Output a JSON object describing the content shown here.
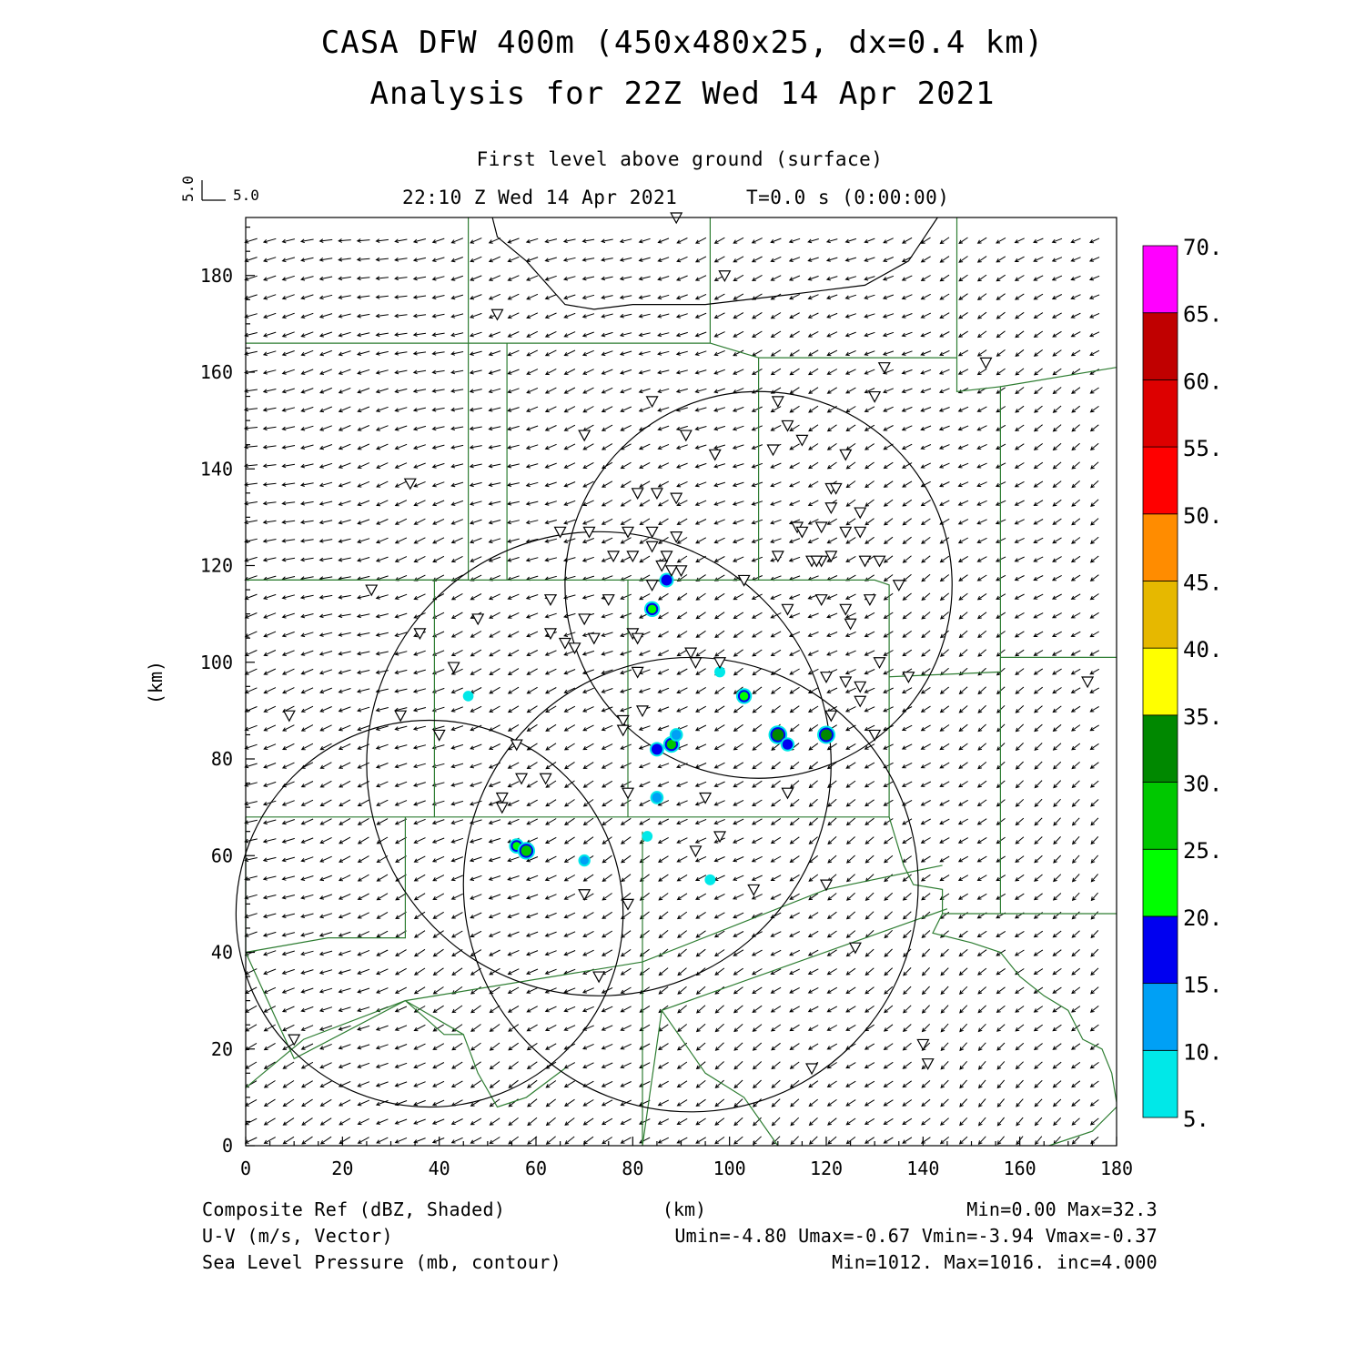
{
  "title_line1": "CASA DFW 400m (450x480x25, dx=0.4 km)",
  "title_line2": "Analysis for 22Z Wed 14 Apr 2021",
  "level_label": "First level above ground (surface)",
  "time_label": "22:10 Z Wed 14 Apr 2021",
  "t_label": "T=0.0 s (0:00:00)",
  "vector_ref_x": "5.0",
  "vector_ref_y": "5.0",
  "axis": {
    "ylabel": "(km)",
    "xlabel": "(km)",
    "x_ticks": [
      "0",
      "20",
      "40",
      "60",
      "80",
      "100",
      "120",
      "140",
      "160",
      "180"
    ],
    "y_ticks": [
      "0",
      "20",
      "40",
      "60",
      "80",
      "100",
      "120",
      "140",
      "160",
      "180"
    ]
  },
  "colorbar": {
    "labels": [
      "5.",
      "10.",
      "15.",
      "20.",
      "25.",
      "30.",
      "35.",
      "40.",
      "45.",
      "50.",
      "55.",
      "60.",
      "65.",
      "70."
    ],
    "colors": [
      "#00e8e8",
      "#00a0f5",
      "#0000f0",
      "#00ff00",
      "#00c800",
      "#008800",
      "#ffff00",
      "#e6b800",
      "#ff8c00",
      "#ff0000",
      "#dd0000",
      "#c00000",
      "#ff00ff"
    ]
  },
  "footer": {
    "line1_left": "Composite Ref (dBZ, Shaded)",
    "line1_right": "Min=0.00 Max=32.3",
    "line2_left": "U-V (m/s, Vector)",
    "line2_right": "Umin=-4.80 Umax=-0.67 Vmin=-3.94 Vmax=-0.37",
    "line3_left": "Sea Level Pressure (mb, contour)",
    "line3_right": "Min=1012. Max=1016. inc=4.000"
  },
  "map": {
    "radar_rings": [
      {
        "cx": 38,
        "cy": 48,
        "r": 40
      },
      {
        "cx": 73,
        "cy": 79,
        "r": 48
      },
      {
        "cx": 92,
        "cy": 54,
        "r": 47
      },
      {
        "cx": 106,
        "cy": 116,
        "r": 40
      }
    ],
    "echoes": [
      {
        "x": 56,
        "y": 62,
        "dbz": 20
      },
      {
        "x": 58,
        "y": 61,
        "dbz": 28
      },
      {
        "x": 70,
        "y": 59,
        "dbz": 10
      },
      {
        "x": 84,
        "y": 111,
        "dbz": 22
      },
      {
        "x": 87,
        "y": 117,
        "dbz": 18
      },
      {
        "x": 85,
        "y": 82,
        "dbz": 18
      },
      {
        "x": 88,
        "y": 83,
        "dbz": 25
      },
      {
        "x": 89,
        "y": 85,
        "dbz": 14
      },
      {
        "x": 85,
        "y": 72,
        "dbz": 14
      },
      {
        "x": 103,
        "y": 93,
        "dbz": 22
      },
      {
        "x": 110,
        "y": 85,
        "dbz": 32
      },
      {
        "x": 112,
        "y": 83,
        "dbz": 16
      },
      {
        "x": 120,
        "y": 85,
        "dbz": 30
      },
      {
        "x": 98,
        "y": 98,
        "dbz": 6
      },
      {
        "x": 96,
        "y": 55,
        "dbz": 6
      },
      {
        "x": 46,
        "y": 93,
        "dbz": 5
      },
      {
        "x": 83,
        "y": 64,
        "dbz": 5
      }
    ],
    "stations": [
      [
        89,
        192
      ],
      [
        99,
        180
      ],
      [
        52,
        172
      ],
      [
        153,
        162
      ],
      [
        132,
        161
      ],
      [
        84,
        154
      ],
      [
        110,
        154
      ],
      [
        130,
        155
      ],
      [
        70,
        147
      ],
      [
        91,
        147
      ],
      [
        112,
        149
      ],
      [
        115,
        146
      ],
      [
        97,
        143
      ],
      [
        109,
        144
      ],
      [
        124,
        143
      ],
      [
        34,
        137
      ],
      [
        81,
        135
      ],
      [
        85,
        135
      ],
      [
        89,
        134
      ],
      [
        121,
        136
      ],
      [
        122,
        136
      ],
      [
        121,
        132
      ],
      [
        127,
        131
      ],
      [
        114,
        128
      ],
      [
        115,
        127
      ],
      [
        119,
        128
      ],
      [
        65,
        127
      ],
      [
        71,
        127
      ],
      [
        79,
        127
      ],
      [
        84,
        127
      ],
      [
        89,
        126
      ],
      [
        124,
        127
      ],
      [
        127,
        127
      ],
      [
        76,
        122
      ],
      [
        80,
        122
      ],
      [
        84,
        124
      ],
      [
        87,
        122
      ],
      [
        117,
        121
      ],
      [
        119,
        121
      ],
      [
        118,
        121
      ],
      [
        121,
        122
      ],
      [
        110,
        122
      ],
      [
        128,
        121
      ],
      [
        131,
        121
      ],
      [
        86,
        120
      ],
      [
        90,
        119
      ],
      [
        88,
        119
      ],
      [
        103,
        117
      ],
      [
        84,
        116
      ],
      [
        135,
        116
      ],
      [
        26,
        115
      ],
      [
        75,
        113
      ],
      [
        63,
        113
      ],
      [
        70,
        109
      ],
      [
        112,
        111
      ],
      [
        119,
        113
      ],
      [
        124,
        111
      ],
      [
        125,
        108
      ],
      [
        48,
        109
      ],
      [
        36,
        106
      ],
      [
        63,
        106
      ],
      [
        66,
        104
      ],
      [
        68,
        103
      ],
      [
        72,
        105
      ],
      [
        80,
        106
      ],
      [
        81,
        105
      ],
      [
        92,
        102
      ],
      [
        129,
        113
      ],
      [
        131,
        100
      ],
      [
        93,
        100
      ],
      [
        98,
        100
      ],
      [
        43,
        99
      ],
      [
        81,
        98
      ],
      [
        120,
        97
      ],
      [
        124,
        96
      ],
      [
        127,
        95
      ],
      [
        127,
        92
      ],
      [
        137,
        97
      ],
      [
        174,
        96
      ],
      [
        9,
        89
      ],
      [
        32,
        89
      ],
      [
        82,
        90
      ],
      [
        78,
        88
      ],
      [
        78,
        86
      ],
      [
        121,
        89
      ],
      [
        40,
        85
      ],
      [
        56,
        83
      ],
      [
        130,
        85
      ],
      [
        57,
        76
      ],
      [
        62,
        76
      ],
      [
        53,
        72
      ],
      [
        53,
        70
      ],
      [
        79,
        73
      ],
      [
        95,
        72
      ],
      [
        112,
        73
      ],
      [
        98,
        64
      ],
      [
        93,
        61
      ],
      [
        70,
        52
      ],
      [
        79,
        50
      ],
      [
        120,
        54
      ],
      [
        105,
        53
      ],
      [
        126,
        41
      ],
      [
        73,
        35
      ],
      [
        140,
        21
      ],
      [
        10,
        22
      ],
      [
        141,
        17
      ],
      [
        117,
        16
      ]
    ],
    "counties": [
      [
        [
          0,
          166
        ],
        [
          46,
          166
        ],
        [
          46,
          117
        ],
        [
          0,
          117
        ]
      ],
      [
        [
          46,
          166
        ],
        [
          46,
          192
        ]
      ],
      [
        [
          46,
          166
        ],
        [
          54,
          166
        ],
        [
          54,
          117
        ]
      ],
      [
        [
          54,
          166
        ],
        [
          96,
          166
        ],
        [
          106,
          163
        ],
        [
          106,
          117
        ]
      ],
      [
        [
          96,
          166
        ],
        [
          96,
          192
        ]
      ],
      [
        [
          106,
          163
        ],
        [
          147,
          163
        ],
        [
          147,
          192
        ]
      ],
      [
        [
          147,
          163
        ],
        [
          147,
          156
        ],
        [
          156,
          157
        ],
        [
          156,
          117
        ]
      ],
      [
        [
          156,
          157
        ],
        [
          180,
          161
        ]
      ],
      [
        [
          0,
          117
        ],
        [
          39,
          117
        ],
        [
          39,
          68
        ]
      ],
      [
        [
          39,
          117
        ],
        [
          79,
          117
        ],
        [
          79,
          68
        ]
      ],
      [
        [
          79,
          117
        ],
        [
          106,
          117
        ],
        [
          130,
          117
        ],
        [
          133,
          116
        ],
        [
          133,
          97
        ],
        [
          156,
          98
        ],
        [
          156,
          117
        ]
      ],
      [
        [
          156,
          101
        ],
        [
          180,
          101
        ]
      ],
      [
        [
          133,
          97
        ],
        [
          133,
          68
        ]
      ],
      [
        [
          0,
          68
        ],
        [
          39,
          68
        ],
        [
          79,
          68
        ],
        [
          133,
          68
        ]
      ],
      [
        [
          0,
          68
        ],
        [
          0,
          40
        ]
      ],
      [
        [
          33,
          68
        ],
        [
          33,
          43
        ],
        [
          17,
          43
        ],
        [
          0,
          40
        ]
      ],
      [
        [
          82,
          65
        ],
        [
          82,
          0
        ]
      ],
      [
        [
          156,
          101
        ],
        [
          156,
          48
        ],
        [
          180,
          48
        ]
      ],
      [
        [
          0,
          40
        ],
        [
          10,
          18
        ],
        [
          33,
          30
        ],
        [
          41,
          23
        ],
        [
          45,
          23
        ],
        [
          48,
          15
        ],
        [
          52,
          8
        ],
        [
          58,
          10
        ],
        [
          66,
          16
        ]
      ],
      [
        [
          33,
          30
        ],
        [
          45,
          23
        ]
      ],
      [
        [
          0,
          12
        ],
        [
          12,
          22
        ],
        [
          33,
          30
        ],
        [
          82,
          38
        ],
        [
          120,
          53
        ],
        [
          144,
          58
        ]
      ],
      [
        [
          133,
          68
        ],
        [
          136,
          58
        ],
        [
          138,
          54
        ],
        [
          144,
          53
        ],
        [
          144,
          48
        ],
        [
          156,
          48
        ]
      ],
      [
        [
          144,
          48
        ],
        [
          142,
          44
        ],
        [
          150,
          42
        ],
        [
          156,
          40
        ],
        [
          160,
          35
        ],
        [
          165,
          31
        ],
        [
          170,
          28
        ],
        [
          173,
          22
        ],
        [
          177,
          20
        ],
        [
          179,
          15
        ],
        [
          180,
          9
        ]
      ],
      [
        [
          82,
          0
        ],
        [
          86,
          28
        ],
        [
          95,
          15
        ],
        [
          103,
          10
        ],
        [
          110,
          0
        ]
      ],
      [
        [
          86,
          28
        ],
        [
          145,
          49
        ]
      ],
      [
        [
          166,
          0
        ],
        [
          175,
          3
        ],
        [
          180,
          8
        ]
      ]
    ],
    "isobar": [
      [
        51,
        192
      ],
      [
        52,
        188
      ],
      [
        58,
        183
      ],
      [
        66,
        174
      ],
      [
        72,
        173
      ],
      [
        80,
        174
      ],
      [
        95,
        174
      ],
      [
        112,
        176
      ],
      [
        128,
        178
      ],
      [
        137,
        183
      ],
      [
        143,
        192
      ]
    ]
  }
}
